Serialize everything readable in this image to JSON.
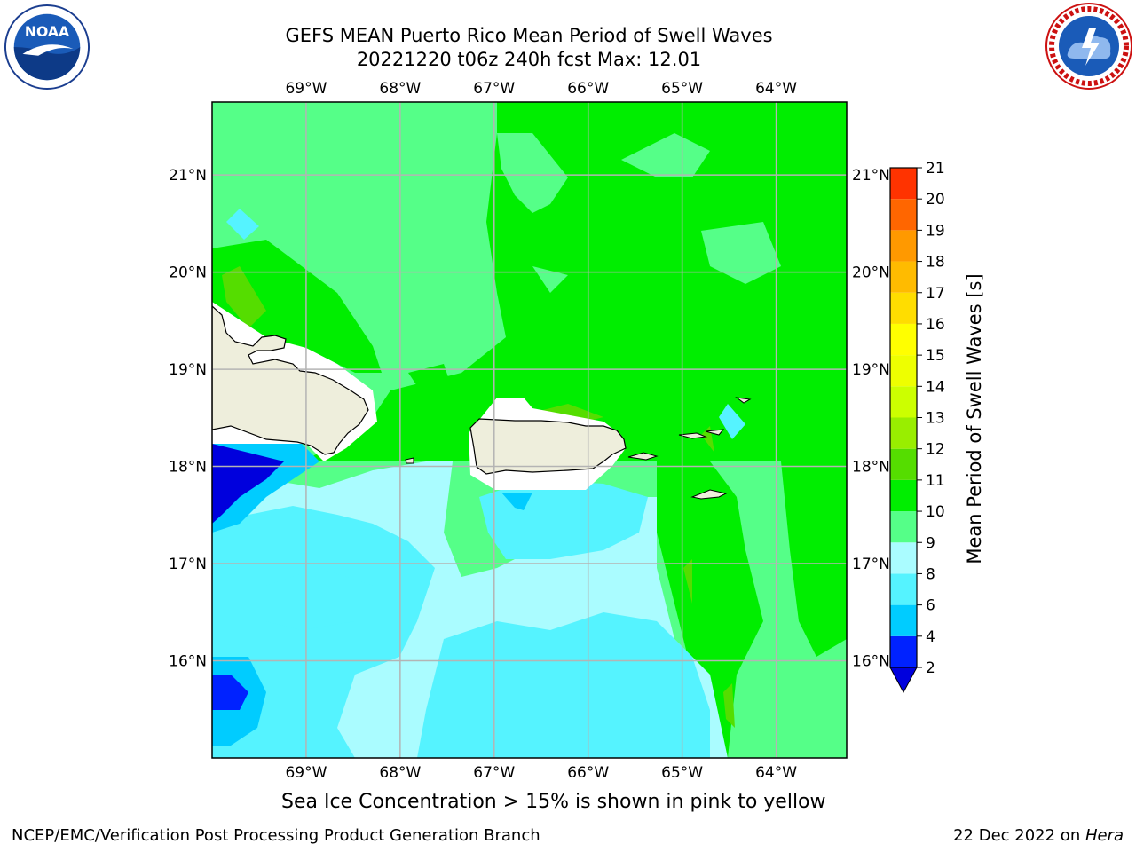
{
  "title": {
    "line1": "GEFS MEAN Puerto Rico Mean Period of Swell Waves",
    "line2": "20221220 t06z 240h fcst   Max: 12.01"
  },
  "map": {
    "lon_ticks": [
      "69°W",
      "68°W",
      "67°W",
      "66°W",
      "65°W",
      "64°W"
    ],
    "lat_ticks": [
      "21°N",
      "20°N",
      "19°N",
      "18°N",
      "17°N",
      "16°N"
    ],
    "lon_range": [
      -70.0,
      -63.25
    ],
    "lat_range": [
      15.0,
      21.75
    ]
  },
  "colorbar": {
    "label": "Mean Period of Swell Waves [s]",
    "ticks": [
      "2",
      "4",
      "6",
      "8",
      "9",
      "10",
      "11",
      "12",
      "13",
      "14",
      "15",
      "16",
      "17",
      "18",
      "19",
      "20",
      "21"
    ],
    "colors": [
      "#0022ff",
      "#00ccff",
      "#55f3ff",
      "#aafcff",
      "#55ff88",
      "#00ee00",
      "#55dd00",
      "#99ee00",
      "#ccff00",
      "#eeff00",
      "#ffff00",
      "#ffdd00",
      "#ffbb00",
      "#ff9900",
      "#ff6600",
      "#ff3300",
      "#ff0000"
    ],
    "under_color": "#0000dd"
  },
  "subtitle": "Sea Ice Concentration > 15% is shown in pink to yellow",
  "footer": {
    "left": "NCEP/EMC/Verification Post Processing Product Generation Branch",
    "right_prefix": "22 Dec 2022 on ",
    "right_machine": "Hera"
  },
  "logos": {
    "left": "noaa-logo",
    "right": "nws-logo"
  }
}
